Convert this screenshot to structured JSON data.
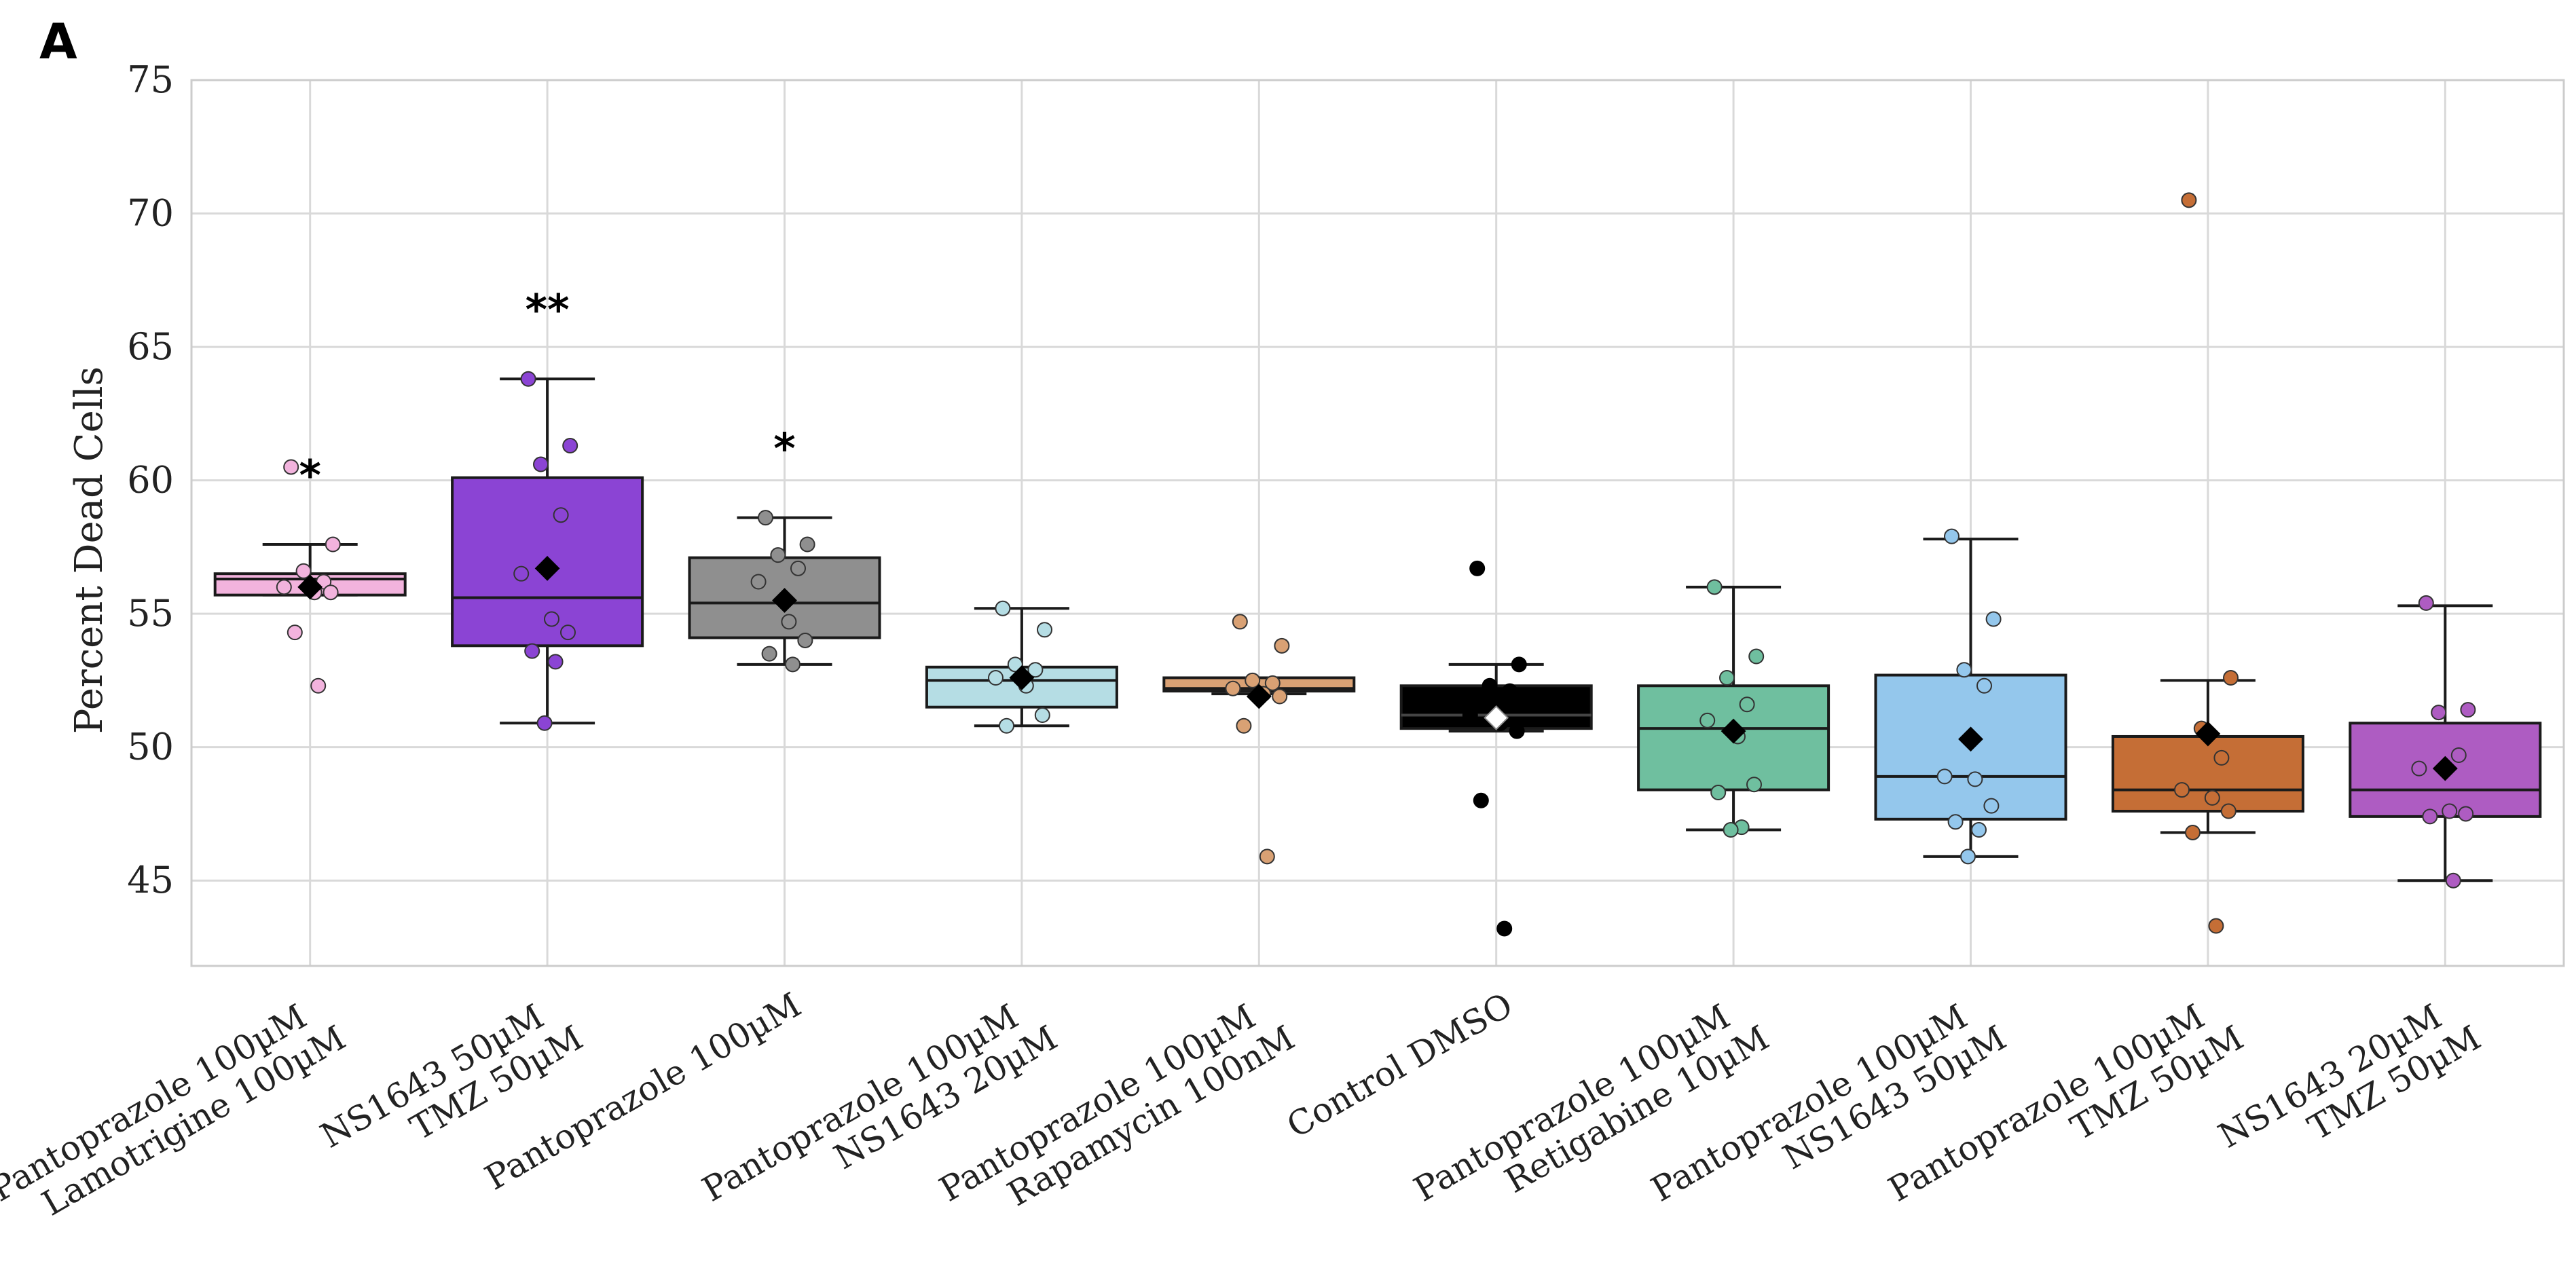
{
  "panel_label": "A",
  "chart_data": {
    "type": "box",
    "title": "",
    "xlabel": "",
    "ylabel": "Percent Dead Cells",
    "ylim": [
      41.8,
      75
    ],
    "yticks": [
      45,
      50,
      55,
      60,
      65,
      70,
      75
    ],
    "grid": true,
    "legend": "none",
    "groups": [
      {
        "label_lines": [
          "Pantoprazole 100µM",
          "Lamotrigine 100µM"
        ],
        "color": "#f2b3dd",
        "significance": "*",
        "whisker_low": 55.7,
        "q1": 55.7,
        "median": 56.3,
        "q3": 56.5,
        "whisker_high": 57.6,
        "mean": 56.0,
        "points": [
          60.5,
          57.6,
          56.6,
          56.2,
          56.0,
          55.8,
          55.8,
          54.3,
          52.3
        ]
      },
      {
        "label_lines": [
          "NS1643 50µM",
          "TMZ 50µM"
        ],
        "color": "#8b44d4",
        "significance": "**",
        "whisker_low": 50.9,
        "q1": 53.8,
        "median": 55.6,
        "q3": 60.1,
        "whisker_high": 63.8,
        "mean": 56.7,
        "points": [
          63.8,
          61.3,
          60.6,
          58.7,
          56.5,
          54.8,
          54.3,
          53.6,
          53.2,
          50.9
        ]
      },
      {
        "label_lines": [
          "Pantoprazole 100µM"
        ],
        "color": "#8f8f8f",
        "significance": "*",
        "whisker_low": 53.1,
        "q1": 54.1,
        "median": 55.4,
        "q3": 57.1,
        "whisker_high": 58.6,
        "mean": 55.5,
        "points": [
          58.6,
          57.6,
          57.2,
          56.7,
          56.2,
          54.7,
          54.0,
          53.5,
          53.1
        ]
      },
      {
        "label_lines": [
          "Pantoprazole 100µM",
          "NS1643 20µM"
        ],
        "color": "#b5dde4",
        "significance": "",
        "whisker_low": 50.8,
        "q1": 51.5,
        "median": 52.5,
        "q3": 53.0,
        "whisker_high": 55.2,
        "mean": 52.6,
        "points": [
          55.2,
          54.4,
          53.1,
          52.9,
          52.6,
          52.3,
          51.2,
          50.8
        ]
      },
      {
        "label_lines": [
          "Pantoprazole 100µM",
          "Rapamycin 100nM"
        ],
        "color": "#d9a174",
        "significance": "",
        "whisker_low": 52.0,
        "q1": 52.1,
        "median": 52.2,
        "q3": 52.6,
        "whisker_high": 52.6,
        "mean": 51.9,
        "points": [
          54.7,
          53.8,
          52.5,
          52.4,
          52.2,
          52.0,
          51.9,
          50.8,
          45.9
        ]
      },
      {
        "label_lines": [
          "Control DMSO"
        ],
        "color": "#000000",
        "significance": "",
        "whisker_low": 50.6,
        "q1": 50.7,
        "median": 51.2,
        "q3": 52.3,
        "whisker_high": 53.1,
        "mean": 51.1,
        "points": [
          56.7,
          53.1,
          52.3,
          52.1,
          51.2,
          50.9,
          50.6,
          48.0,
          43.2
        ]
      },
      {
        "label_lines": [
          "Pantoprazole 100µM",
          "Retigabine 10µM"
        ],
        "color": "#6fbf9f",
        "significance": "",
        "whisker_low": 46.9,
        "q1": 48.4,
        "median": 50.7,
        "q3": 52.3,
        "whisker_high": 56.0,
        "mean": 50.6,
        "points": [
          56.0,
          53.4,
          52.6,
          51.6,
          51.0,
          50.4,
          48.6,
          48.3,
          47.0,
          46.9
        ]
      },
      {
        "label_lines": [
          "Pantoprazole 100µM",
          "NS1643 50µM"
        ],
        "color": "#94c7ec",
        "significance": "",
        "whisker_low": 45.9,
        "q1": 47.3,
        "median": 48.9,
        "q3": 52.7,
        "whisker_high": 57.8,
        "mean": 50.3,
        "points": [
          57.9,
          54.8,
          52.9,
          52.3,
          48.9,
          48.8,
          47.8,
          47.2,
          46.9,
          45.9
        ]
      },
      {
        "label_lines": [
          "Pantoprazole 100µM",
          "TMZ 50µM"
        ],
        "color": "#c56e36",
        "significance": "",
        "whisker_low": 46.8,
        "q1": 47.6,
        "median": 48.4,
        "q3": 50.4,
        "whisker_high": 52.5,
        "mean": 50.5,
        "points": [
          70.5,
          52.6,
          50.7,
          49.6,
          48.4,
          48.1,
          47.6,
          46.8,
          43.3
        ]
      },
      {
        "label_lines": [
          "NS1643 20µM",
          "TMZ 50µM"
        ],
        "color": "#ae5cc2",
        "significance": "",
        "whisker_low": 45.0,
        "q1": 47.4,
        "median": 48.4,
        "q3": 50.9,
        "whisker_high": 55.3,
        "mean": 49.2,
        "points": [
          55.4,
          51.4,
          51.3,
          49.7,
          49.2,
          47.6,
          47.5,
          47.4,
          45.0
        ]
      }
    ]
  }
}
